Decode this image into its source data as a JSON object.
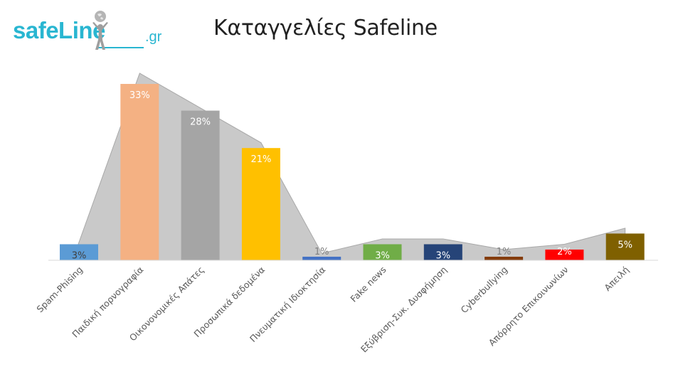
{
  "logo": {
    "text": "safeLine",
    "suffix": ".gr",
    "color": "#29b6d1"
  },
  "title": "Καταγγελίες Safeline",
  "chart_data": {
    "type": "bar",
    "title": "Καταγγελίες Safeline",
    "xlabel": "",
    "ylabel": "",
    "ylim": [
      0,
      35
    ],
    "grid": false,
    "legend": "none",
    "value_format": "percent",
    "categories": [
      "Spam-Phising",
      "Παιδική πορνογραφία",
      "Οικονονομικές Απάτες",
      "Προσωπικά δεδομένα",
      "Πνευματική Ιδιοκτησία",
      "Fake news",
      "Εξύβριση-Συκ. Δυσφήμηση",
      "Cyberbullying",
      "Απόρρητο Επικοινωνίων",
      "Απειλή"
    ],
    "values": [
      3,
      33,
      28,
      21,
      1,
      3,
      3,
      1,
      2,
      5
    ],
    "value_labels": [
      "3%",
      "33%",
      "28%",
      "21%",
      "1%",
      "3%",
      "3%",
      "1%",
      "2%",
      "5%"
    ],
    "colors": [
      "#5b9bd5",
      "#f4b183",
      "#a5a5a5",
      "#ffc000",
      "#4472c4",
      "#70ad47",
      "#264478",
      "#843c0c",
      "#ff0000",
      "#7f6000"
    ],
    "label_colors": [
      "#404040",
      "#ffffff",
      "#ffffff",
      "#ffffff",
      "#808080",
      "#ffffff",
      "#ffffff",
      "#808080",
      "#ffffff",
      "#ffffff"
    ],
    "background_area": {
      "type": "area",
      "color": "#c9c9c9",
      "values": [
        3,
        35,
        28.5,
        22,
        1.3,
        4,
        4,
        2,
        3,
        6
      ]
    }
  }
}
